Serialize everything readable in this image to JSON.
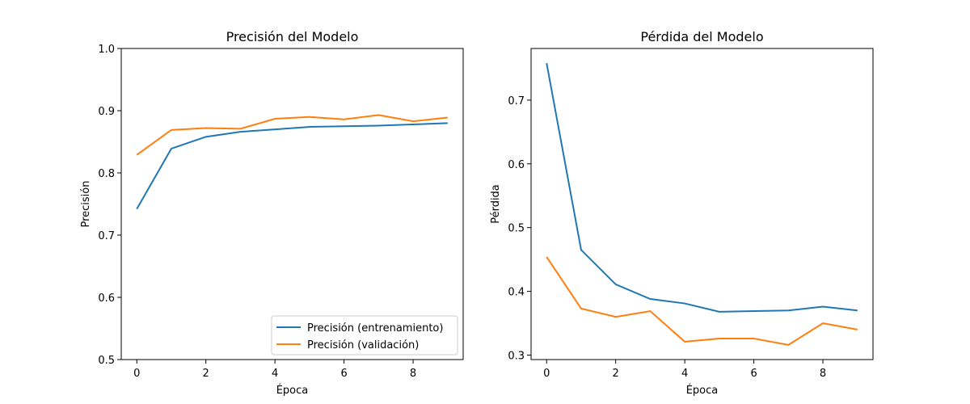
{
  "chart_data": [
    {
      "type": "line",
      "title": "Precisión del Modelo",
      "xlabel": "Época",
      "ylabel": "Precisión",
      "x": [
        0,
        1,
        2,
        3,
        4,
        5,
        6,
        7,
        8,
        9
      ],
      "xlim": [
        -0.45,
        9.45
      ],
      "ylim": [
        0.5,
        1.0
      ],
      "xticks": [
        0,
        2,
        4,
        6,
        8
      ],
      "yticks": [
        0.5,
        0.6,
        0.7,
        0.8,
        0.9,
        1.0
      ],
      "ytick_format": 1,
      "grid": false,
      "legend_position": "lower-right",
      "series": [
        {
          "name": "Precisión (entrenamiento)",
          "color": "#1f77b4",
          "values": [
            0.742,
            0.839,
            0.858,
            0.866,
            0.87,
            0.874,
            0.875,
            0.876,
            0.878,
            0.88
          ]
        },
        {
          "name": "Precisión (validación)",
          "color": "#ff7f0e",
          "values": [
            0.829,
            0.869,
            0.872,
            0.871,
            0.887,
            0.89,
            0.886,
            0.893,
            0.883,
            0.889
          ]
        }
      ]
    },
    {
      "type": "line",
      "title": "Pérdida del Modelo",
      "xlabel": "Época",
      "ylabel": "Pérdida",
      "x": [
        0,
        1,
        2,
        3,
        4,
        5,
        6,
        7,
        8,
        9
      ],
      "xlim": [
        -0.45,
        9.45
      ],
      "ylim": [
        0.293,
        0.781
      ],
      "xticks": [
        0,
        2,
        4,
        6,
        8
      ],
      "yticks": [
        0.3,
        0.4,
        0.5,
        0.6,
        0.7
      ],
      "ytick_format": 1,
      "grid": false,
      "legend_position": "none",
      "series": [
        {
          "color": "#1f77b4",
          "values": [
            0.758,
            0.465,
            0.411,
            0.388,
            0.381,
            0.368,
            0.369,
            0.37,
            0.376,
            0.37
          ]
        },
        {
          "color": "#ff7f0e",
          "values": [
            0.454,
            0.373,
            0.36,
            0.369,
            0.321,
            0.326,
            0.326,
            0.316,
            0.35,
            0.34
          ]
        }
      ]
    }
  ]
}
